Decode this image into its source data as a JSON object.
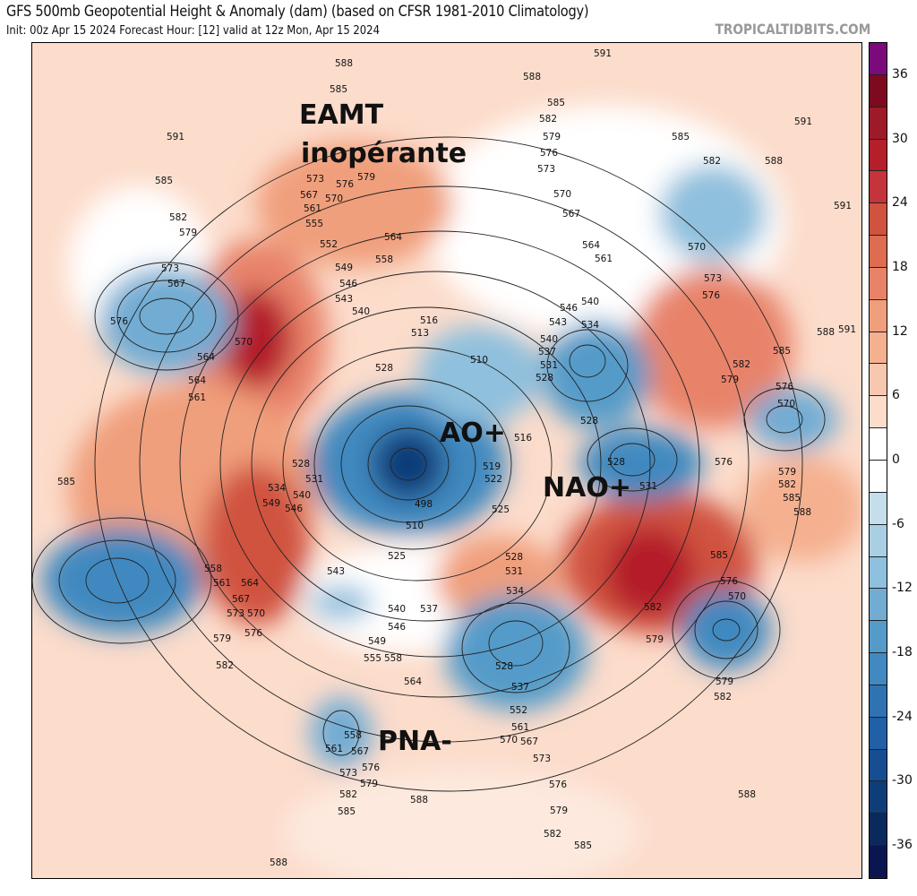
{
  "header": {
    "title": "GFS 500mb Geopotential Height & Anomaly (dam) (based on CFSR 1981-2010 Climatology)",
    "subtitle": "Init: 00z Apr 15 2024   Forecast Hour: [12]   valid at 12z Mon, Apr 15 2024",
    "brand": "TROPICALTIDBITS.COM"
  },
  "annotations": {
    "eamt_line1": "EAMT",
    "eamt_line2": "inopérante",
    "ao": "AO+",
    "nao": "NAO+",
    "pna": "PNA-"
  },
  "colorbar": {
    "unit": "dam",
    "ticks": [
      "36",
      "30",
      "24",
      "18",
      "12",
      "6",
      "0",
      "-6",
      "-12",
      "-18",
      "-24",
      "-30",
      "-36"
    ],
    "colors": [
      "#7b0a7b",
      "#7d0a1e",
      "#9e1a28",
      "#b41f2a",
      "#c4343a",
      "#d0533f",
      "#dd6c50",
      "#e8836a",
      "#f09f7c",
      "#f5b090",
      "#f8c7b0",
      "#fcdccb",
      "#ffffff",
      "#ffffff",
      "#c4deec",
      "#a9cfe4",
      "#8fc0dd",
      "#72acd3",
      "#559bc9",
      "#4189c0",
      "#2f73b3",
      "#2160a6",
      "#174e92",
      "#0f3d78",
      "#0a2a5c",
      "#0b1550"
    ]
  },
  "contour_labels": [
    "591",
    "588",
    "585",
    "579",
    "576",
    "573",
    "570",
    "567",
    "561",
    "555",
    "552",
    "564",
    "558",
    "549",
    "546",
    "543",
    "540",
    "585",
    "582",
    "579",
    "573",
    "567",
    "576",
    "570",
    "564",
    "564",
    "561",
    "585",
    "528",
    "531",
    "534",
    "540",
    "549",
    "546",
    "558",
    "561",
    "564",
    "567",
    "570",
    "573",
    "576",
    "579",
    "582",
    "543",
    "540",
    "537",
    "546",
    "549",
    "555",
    "558",
    "564",
    "528",
    "516",
    "513",
    "510",
    "519",
    "522",
    "516",
    "498",
    "510",
    "525",
    "525",
    "528",
    "531",
    "534",
    "528",
    "537",
    "552",
    "561",
    "567",
    "570",
    "573",
    "576",
    "579",
    "582",
    "585",
    "588",
    "588",
    "582",
    "585",
    "579",
    "576",
    "573",
    "567",
    "561",
    "558",
    "591",
    "588",
    "585",
    "582",
    "579",
    "576",
    "573",
    "570",
    "567",
    "564",
    "561",
    "540",
    "546",
    "543",
    "540",
    "537",
    "534",
    "531",
    "528",
    "528",
    "528",
    "531",
    "585",
    "582",
    "588",
    "591",
    "591",
    "570",
    "573",
    "576",
    "588",
    "591",
    "585",
    "582",
    "579",
    "576",
    "570",
    "576",
    "579",
    "582",
    "585",
    "588",
    "585",
    "582",
    "579",
    "576",
    "570",
    "579",
    "582",
    "588"
  ]
}
